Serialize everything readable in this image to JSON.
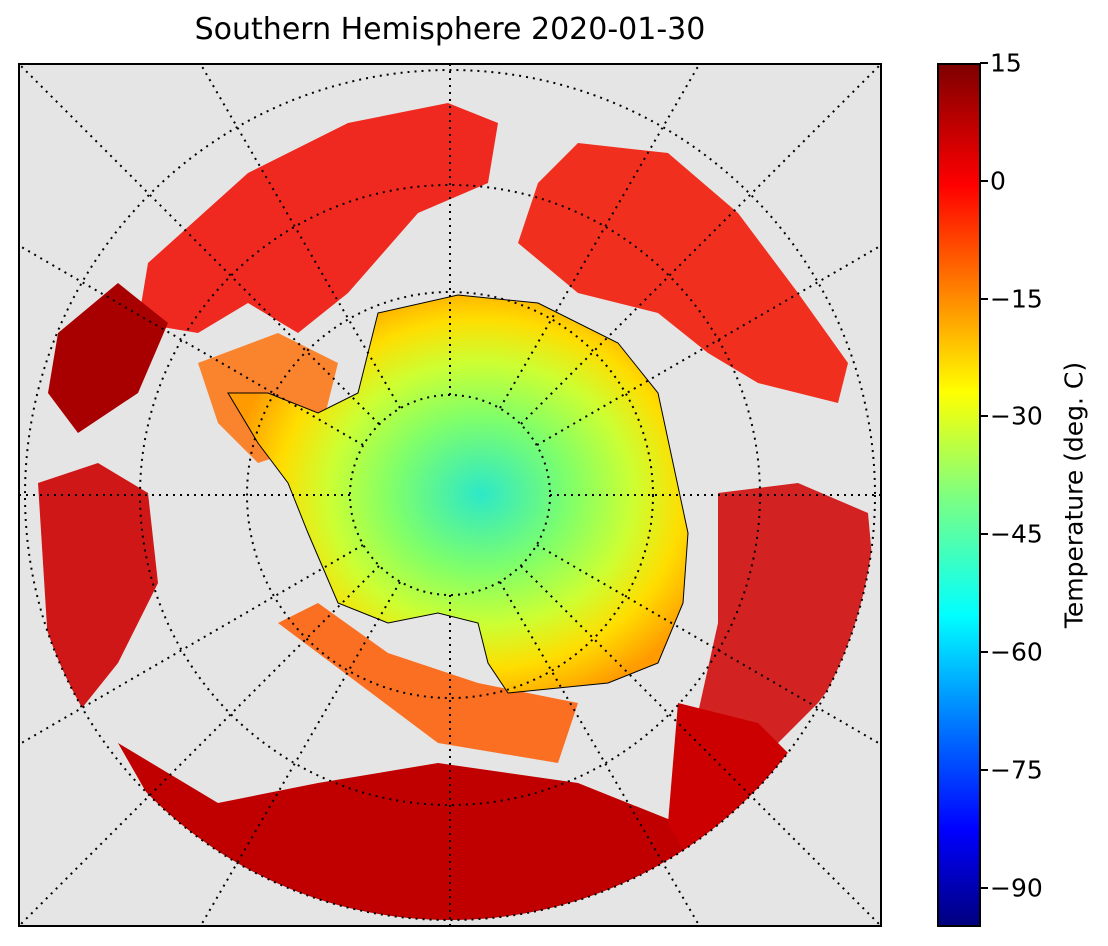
{
  "title": "Southern Hemisphere 2020-01-30",
  "colorbar": {
    "label": "Temperature (deg. C)",
    "range": [
      -95,
      15
    ],
    "ticks": [
      "15",
      "0",
      "−15",
      "−30",
      "−45",
      "−60",
      "−75",
      "−90"
    ],
    "tick_values": [
      15,
      0,
      -15,
      -30,
      -45,
      -60,
      -75,
      -90
    ],
    "colormap": "jet"
  },
  "map": {
    "projection": "south-polar-stereographic",
    "background_color": "#e5e5e5",
    "graticule": "dotted",
    "features": [
      "coastlines",
      "antarctica",
      "graticule"
    ]
  }
}
